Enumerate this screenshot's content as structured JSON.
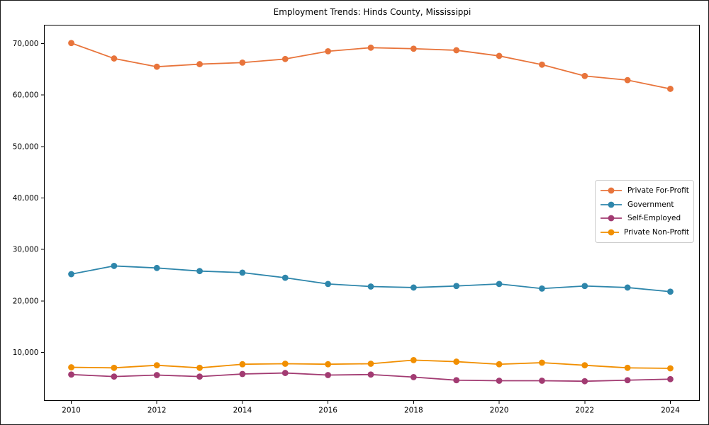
{
  "title": "Employment Trends: Hinds County, Mississippi",
  "chart_data": {
    "type": "line",
    "x": [
      2010,
      2011,
      2012,
      2013,
      2014,
      2015,
      2016,
      2017,
      2018,
      2019,
      2020,
      2021,
      2022,
      2023,
      2024
    ],
    "series": [
      {
        "name": "Private For-Profit",
        "color": "#E8743B",
        "values": [
          70100,
          67100,
          65500,
          66000,
          66300,
          67000,
          68500,
          69200,
          69000,
          68700,
          67600,
          65900,
          63700,
          62900,
          61200
        ]
      },
      {
        "name": "Government",
        "color": "#2E86AB",
        "values": [
          25200,
          26800,
          26400,
          25800,
          25500,
          24500,
          23300,
          22800,
          22600,
          22900,
          23300,
          22400,
          22900,
          22600,
          21800
        ]
      },
      {
        "name": "Self-Employed",
        "color": "#A23B72",
        "values": [
          5700,
          5300,
          5600,
          5300,
          5800,
          6000,
          5600,
          5700,
          5200,
          4600,
          4500,
          4500,
          4400,
          4600,
          4800
        ]
      },
      {
        "name": "Private Non-Profit",
        "color": "#F18F01",
        "values": [
          7100,
          7000,
          7500,
          7000,
          7700,
          7800,
          7700,
          7800,
          8500,
          8200,
          7700,
          8000,
          7500,
          7000,
          6900
        ]
      }
    ],
    "xticks": [
      2010,
      2012,
      2014,
      2016,
      2018,
      2020,
      2022,
      2024
    ],
    "xtick_labels": [
      "2010",
      "2012",
      "2014",
      "2016",
      "2018",
      "2020",
      "2022",
      "2024"
    ],
    "yticks": [
      10000,
      20000,
      30000,
      40000,
      50000,
      60000,
      70000
    ],
    "ytick_labels": [
      "10,000",
      "20,000",
      "30,000",
      "40,000",
      "50,000",
      "60,000",
      "70,000"
    ],
    "xlim": [
      2009.37,
      2024.68
    ],
    "ylim": [
      642,
      73578
    ],
    "grid": false,
    "legend_position": "center right",
    "axis_color": "#000000",
    "tick_label_color": "#000000",
    "background_color": "#ffffff"
  }
}
